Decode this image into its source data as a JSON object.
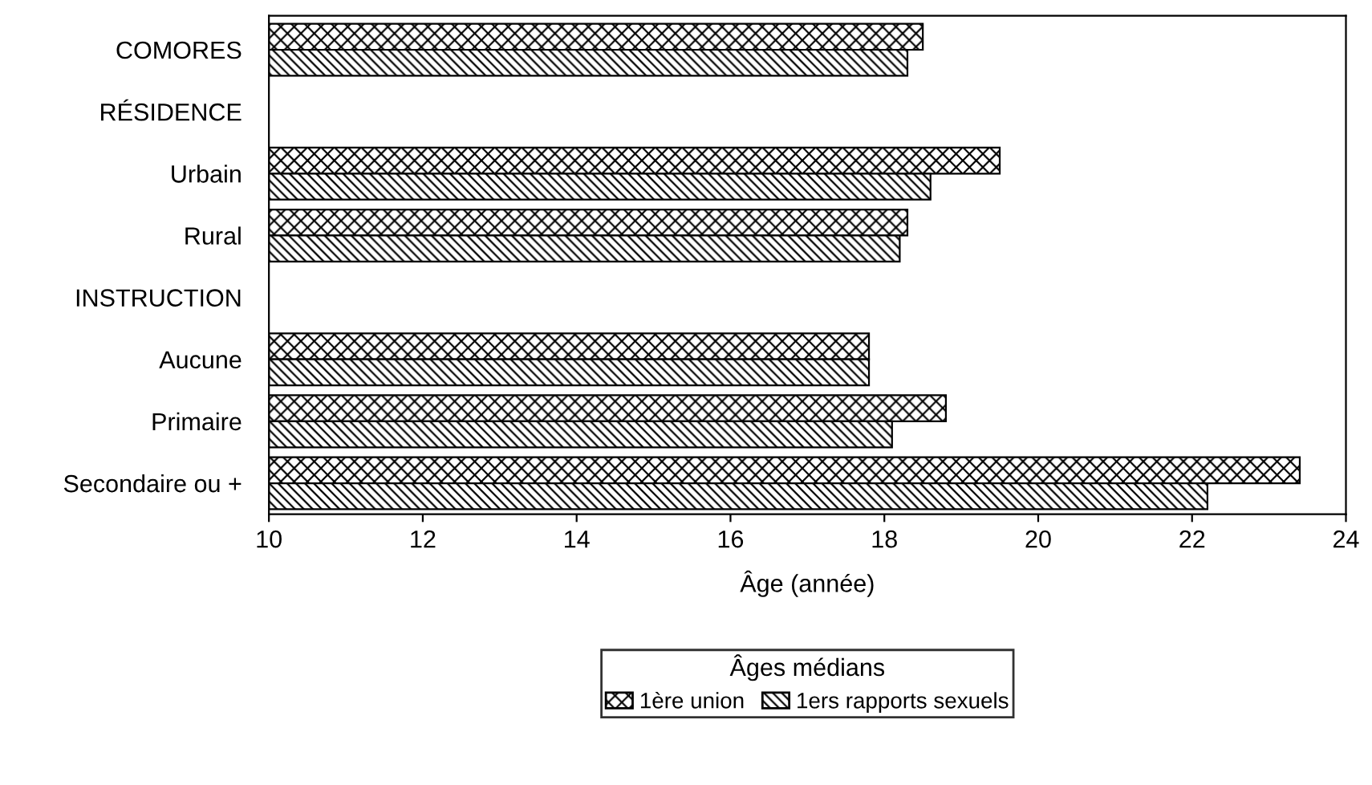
{
  "chart_data": {
    "type": "bar",
    "orientation": "horizontal",
    "xlabel": "Âge (année)",
    "legend_title": "Âges médians",
    "legend": "bottom",
    "categories": [
      "COMORES",
      "RÉSIDENCE",
      "Urbain",
      "Rural",
      "INSTRUCTION",
      "Aucune",
      "Primaire",
      "Secondaire ou +"
    ],
    "series": [
      {
        "name": "1ère union",
        "color": "#000000",
        "values": [
          18.5,
          null,
          19.5,
          18.3,
          null,
          17.8,
          18.8,
          23.4
        ]
      },
      {
        "name": "1ers rapports sexuels",
        "color": "#000000",
        "values": [
          18.3,
          null,
          18.6,
          18.2,
          null,
          17.8,
          18.1,
          22.2
        ]
      }
    ],
    "xlim": [
      10,
      24
    ],
    "xticks": [
      10,
      12,
      14,
      16,
      18,
      20,
      22,
      24
    ],
    "grid": false
  }
}
